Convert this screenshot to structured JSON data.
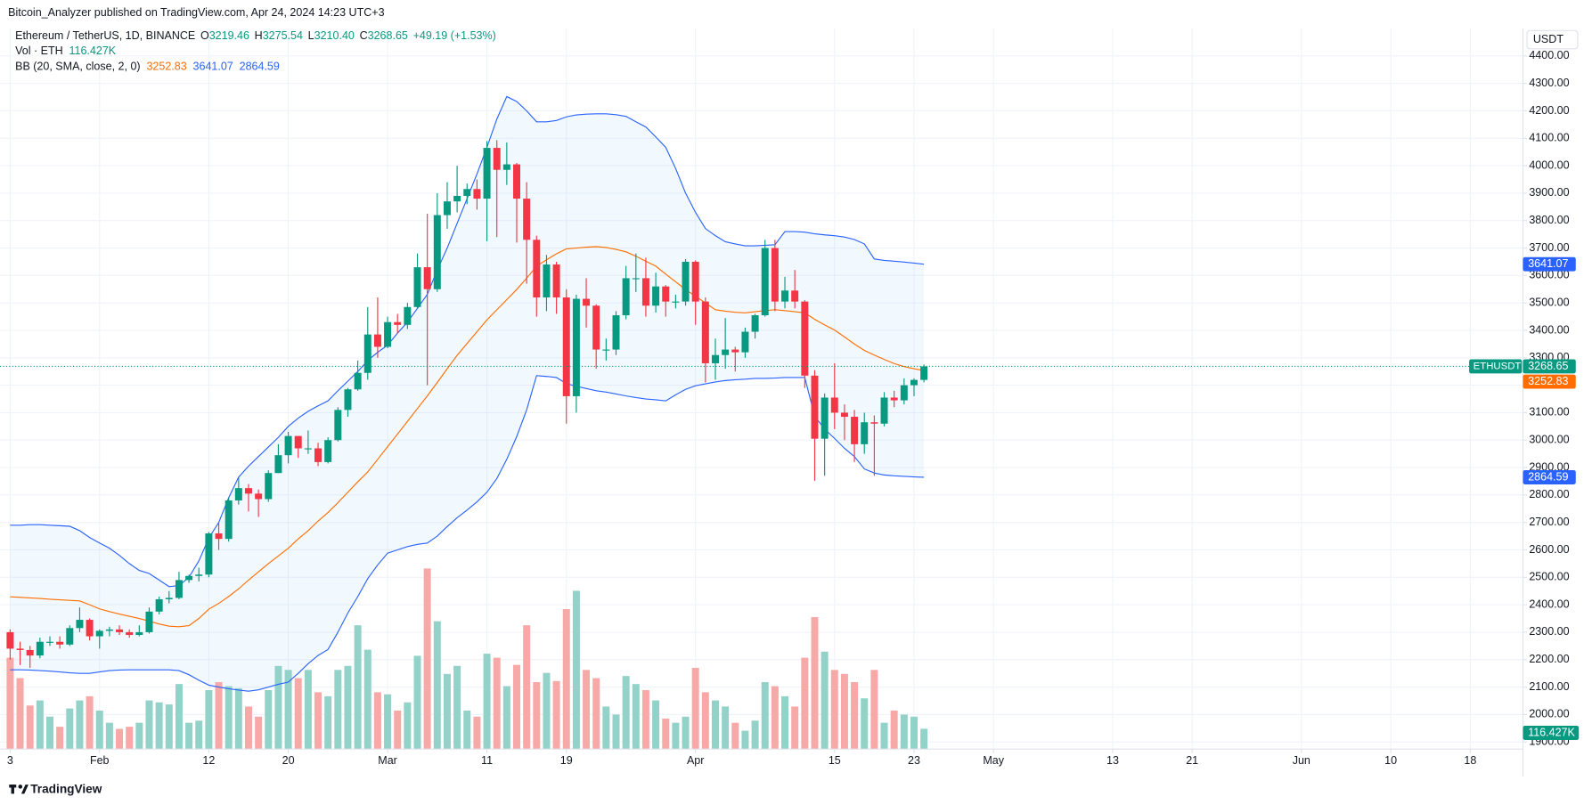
{
  "chart_data": {
    "type": "candlestick",
    "publisher": "Bitcoin_Analyzer published on TradingView.com, Apr 24, 2024 14:23 UTC+3",
    "symbol": "Ethereum / TetherUS, 1D, BINANCE",
    "ohlc_labels": {
      "open": "O",
      "high": "H",
      "low": "L",
      "close": "C"
    },
    "change": "+49.19 (+1.53%)",
    "price_label": "ETHUSDT",
    "currency": "USDT",
    "brand": "TradingView",
    "up_color": "#089981",
    "down_color": "#f23645",
    "x": [
      "01-23",
      "01-24",
      "01-25",
      "01-26",
      "01-27",
      "01-28",
      "01-29",
      "01-30",
      "01-31",
      "02-01",
      "02-02",
      "02-03",
      "02-04",
      "02-05",
      "02-06",
      "02-07",
      "02-08",
      "02-09",
      "02-10",
      "02-11",
      "02-12",
      "02-13",
      "02-14",
      "02-15",
      "02-16",
      "02-17",
      "02-18",
      "02-19",
      "02-20",
      "02-21",
      "02-22",
      "02-23",
      "02-24",
      "02-25",
      "02-26",
      "02-27",
      "02-28",
      "02-29",
      "03-01",
      "03-02",
      "03-03",
      "03-04",
      "03-05",
      "03-06",
      "03-07",
      "03-08",
      "03-09",
      "03-10",
      "03-11",
      "03-12",
      "03-13",
      "03-14",
      "03-15",
      "03-16",
      "03-17",
      "03-18",
      "03-19",
      "03-20",
      "03-21",
      "03-22",
      "03-23",
      "03-24",
      "03-25",
      "03-26",
      "03-27",
      "03-28",
      "03-29",
      "03-30",
      "03-31",
      "04-01",
      "04-02",
      "04-03",
      "04-04",
      "04-05",
      "04-06",
      "04-07",
      "04-08",
      "04-09",
      "04-10",
      "04-11",
      "04-12",
      "04-13",
      "04-14",
      "04-15",
      "04-16",
      "04-17",
      "04-18",
      "04-19",
      "04-20",
      "04-21",
      "04-22",
      "04-23",
      "04-24"
    ],
    "open": [
      2300,
      2240,
      2235,
      2215,
      2265,
      2265,
      2255,
      2315,
      2345,
      2285,
      2305,
      2310,
      2300,
      2290,
      2300,
      2375,
      2420,
      2425,
      2490,
      2505,
      2510,
      2660,
      2640,
      2780,
      2825,
      2805,
      2785,
      2880,
      2945,
      3015,
      2970,
      2970,
      2920,
      3000,
      3110,
      3185,
      3245,
      3385,
      3340,
      3430,
      3420,
      3485,
      3630,
      3550,
      3820,
      3870,
      3890,
      3915,
      3880,
      4065,
      3985,
      4005,
      3880,
      3730,
      3520,
      3640,
      3520,
      3160,
      3515,
      3490,
      3330,
      3330,
      3455,
      3590,
      3590,
      3490,
      3560,
      3505,
      3505,
      3650,
      3505,
      3280,
      3310,
      3330,
      3320,
      3395,
      3455,
      3700,
      3505,
      3545,
      3505,
      3235,
      3005,
      3155,
      3100,
      3085,
      2985,
      3065,
      3060,
      3155,
      3145,
      3200,
      3219.46
    ],
    "high": [
      2310,
      2265,
      2250,
      2280,
      2285,
      2285,
      2325,
      2390,
      2350,
      2310,
      2320,
      2325,
      2310,
      2325,
      2390,
      2430,
      2450,
      2520,
      2510,
      2535,
      2665,
      2700,
      2790,
      2865,
      2840,
      2820,
      2890,
      2985,
      3030,
      3015,
      3035,
      2990,
      3010,
      3120,
      3190,
      3290,
      3485,
      3520,
      3450,
      3460,
      3500,
      3680,
      3825,
      3900,
      3940,
      4000,
      3935,
      3950,
      4090,
      4093,
      4085,
      4010,
      3940,
      3745,
      3675,
      3650,
      3550,
      3530,
      3590,
      3495,
      3370,
      3470,
      3635,
      3680,
      3665,
      3610,
      3565,
      3530,
      3660,
      3655,
      3520,
      3370,
      3445,
      3340,
      3410,
      3460,
      3730,
      3730,
      3595,
      3620,
      3510,
      3255,
      3170,
      3280,
      3130,
      3110,
      3100,
      3090,
      3175,
      3180,
      3225,
      3225,
      3275.54
    ],
    "low": [
      2200,
      2180,
      2170,
      2205,
      2250,
      2240,
      2250,
      2300,
      2270,
      2240,
      2285,
      2290,
      2280,
      2285,
      2295,
      2365,
      2405,
      2420,
      2480,
      2485,
      2500,
      2600,
      2630,
      2765,
      2740,
      2720,
      2775,
      2880,
      2915,
      2935,
      2950,
      2905,
      2915,
      2995,
      3085,
      3180,
      3220,
      3300,
      3335,
      3390,
      3405,
      3480,
      3200,
      3540,
      3770,
      3830,
      3860,
      3840,
      3725,
      3740,
      3930,
      3720,
      3570,
      3450,
      3470,
      3460,
      3060,
      3100,
      3410,
      3260,
      3290,
      3310,
      3440,
      3540,
      3450,
      3465,
      3450,
      3480,
      3490,
      3420,
      3210,
      3220,
      3260,
      3250,
      3300,
      3370,
      3450,
      3470,
      3480,
      3480,
      3190,
      2852,
      2870,
      3040,
      3000,
      2920,
      2950,
      2870,
      3050,
      3120,
      3130,
      3160,
      3210.4
    ],
    "close": [
      2240,
      2235,
      2215,
      2265,
      2265,
      2255,
      2315,
      2345,
      2285,
      2305,
      2310,
      2300,
      2290,
      2300,
      2375,
      2420,
      2425,
      2490,
      2505,
      2510,
      2660,
      2640,
      2780,
      2825,
      2805,
      2785,
      2880,
      2945,
      3015,
      2970,
      2970,
      2920,
      3000,
      3110,
      3185,
      3245,
      3385,
      3340,
      3430,
      3420,
      3485,
      3630,
      3550,
      3820,
      3870,
      3890,
      3915,
      3880,
      4065,
      3985,
      4005,
      3880,
      3730,
      3520,
      3640,
      3520,
      3160,
      3515,
      3490,
      3330,
      3330,
      3455,
      3590,
      3590,
      3490,
      3560,
      3505,
      3505,
      3650,
      3505,
      3280,
      3310,
      3330,
      3320,
      3395,
      3455,
      3700,
      3505,
      3545,
      3505,
      3235,
      3005,
      3155,
      3100,
      3085,
      2985,
      3065,
      3060,
      3155,
      3145,
      3200,
      3219.46,
      3268.65
    ],
    "volume": {
      "name": "Vol · ETH",
      "up_color": "#92d2c8",
      "down_color": "#f7a9a7",
      "last_label": "116.427K",
      "ylim": [
        0,
        4133
      ],
      "values": [
        524,
        407,
        250,
        279,
        186,
        128,
        233,
        279,
        303,
        221,
        151,
        116,
        128,
        151,
        279,
        268,
        256,
        373,
        151,
        163,
        338,
        384,
        361,
        349,
        244,
        186,
        338,
        477,
        454,
        407,
        454,
        326,
        303,
        454,
        477,
        710,
        570,
        326,
        314,
        221,
        268,
        535,
        1036,
        733,
        431,
        477,
        221,
        186,
        547,
        524,
        361,
        483,
        710,
        384,
        437,
        390,
        803,
        908,
        454,
        407,
        244,
        198,
        419,
        373,
        338,
        279,
        175,
        151,
        186,
        466,
        326,
        279,
        244,
        151,
        105,
        163,
        384,
        361,
        303,
        244,
        524,
        757,
        559,
        454,
        431,
        384,
        291,
        454,
        151,
        221,
        198,
        186,
        116.427
      ]
    },
    "bollinger": {
      "name": "BB (20, SMA, close, 2, 0)",
      "fill": "#2196f3",
      "upper": {
        "color": "#2962ff",
        "values": [
          2690,
          2690,
          2692,
          2692,
          2690,
          2688,
          2686,
          2670,
          2645,
          2625,
          2606,
          2580,
          2550,
          2525,
          2514,
          2490,
          2466,
          2470,
          2500,
          2560,
          2643,
          2700,
          2790,
          2865,
          2905,
          2940,
          2975,
          3010,
          3050,
          3080,
          3105,
          3125,
          3143,
          3180,
          3215,
          3250,
          3290,
          3320,
          3346,
          3390,
          3430,
          3480,
          3531,
          3620,
          3700,
          3790,
          3880,
          3970,
          4067,
          4170,
          4252,
          4234,
          4200,
          4160,
          4160,
          4165,
          4178,
          4185,
          4188,
          4189,
          4189,
          4186,
          4180,
          4160,
          4141,
          4105,
          4067,
          3990,
          3900,
          3830,
          3771,
          3745,
          3723,
          3715,
          3708,
          3708,
          3710,
          3712,
          3760,
          3760,
          3758,
          3752,
          3748,
          3745,
          3740,
          3731,
          3715,
          3660,
          3655,
          3652,
          3649,
          3645,
          3641.07
        ]
      },
      "middle": {
        "color": "#ff6d00",
        "values": [
          2429,
          2427,
          2425,
          2423,
          2420,
          2418,
          2416,
          2414,
          2400,
          2385,
          2375,
          2366,
          2358,
          2350,
          2340,
          2330,
          2322,
          2320,
          2324,
          2350,
          2384,
          2405,
          2430,
          2458,
          2490,
          2520,
          2550,
          2578,
          2606,
          2640,
          2670,
          2705,
          2736,
          2772,
          2810,
          2848,
          2884,
          2930,
          2976,
          3022,
          3068,
          3115,
          3161,
          3210,
          3260,
          3309,
          3352,
          3395,
          3438,
          3475,
          3512,
          3549,
          3590,
          3634,
          3657,
          3679,
          3697,
          3700,
          3703,
          3705,
          3702,
          3695,
          3686,
          3670,
          3652,
          3634,
          3605,
          3577,
          3549,
          3524,
          3500,
          3475,
          3470,
          3466,
          3464,
          3468,
          3472,
          3475,
          3472,
          3468,
          3464,
          3440,
          3420,
          3401,
          3376,
          3350,
          3327,
          3310,
          3294,
          3279,
          3268,
          3260,
          3252.83
        ]
      },
      "lower": {
        "color": "#2962ff",
        "values": [
          2163,
          2163,
          2162,
          2160,
          2158,
          2155,
          2152,
          2150,
          2150,
          2155,
          2160,
          2162,
          2163,
          2163,
          2163,
          2163,
          2163,
          2160,
          2145,
          2125,
          2107,
          2100,
          2094,
          2089,
          2085,
          2090,
          2100,
          2110,
          2118,
          2150,
          2185,
          2215,
          2237,
          2300,
          2370,
          2430,
          2495,
          2545,
          2588,
          2600,
          2612,
          2620,
          2625,
          2650,
          2685,
          2717,
          2745,
          2775,
          2810,
          2860,
          2930,
          3013,
          3110,
          3235,
          3232,
          3228,
          3206,
          3196,
          3188,
          3180,
          3175,
          3168,
          3161,
          3155,
          3150,
          3147,
          3143,
          3165,
          3185,
          3198,
          3205,
          3212,
          3217,
          3220,
          3222,
          3225,
          3225,
          3226,
          3228,
          3228,
          3228,
          3087,
          3040,
          3006,
          2970,
          2940,
          2895,
          2880,
          2873,
          2870,
          2868,
          2866,
          2864.59
        ]
      }
    },
    "xlim": [
      "01-23",
      "06-23"
    ],
    "xticks": [
      {
        "value": "01-23",
        "label": "3"
      },
      {
        "value": "02-01",
        "label": "Feb"
      },
      {
        "value": "02-12",
        "label": "12"
      },
      {
        "value": "02-20",
        "label": "20"
      },
      {
        "value": "03-01",
        "label": "Mar"
      },
      {
        "value": "03-11",
        "label": "11"
      },
      {
        "value": "03-19",
        "label": "19"
      },
      {
        "value": "04-01",
        "label": "Apr"
      },
      {
        "value": "04-15",
        "label": "15"
      },
      {
        "value": "04-23",
        "label": "23"
      },
      {
        "value": "05-01",
        "label": "May"
      },
      {
        "value": "05-13",
        "label": "13"
      },
      {
        "value": "05-21",
        "label": "21"
      },
      {
        "value": "06-01",
        "label": "Jun"
      },
      {
        "value": "06-10",
        "label": "10"
      },
      {
        "value": "06-18",
        "label": "18"
      }
    ],
    "ylim": [
      1874,
      4500
    ],
    "yticks": [
      {
        "value": 1900,
        "label": "1900.00"
      },
      {
        "value": 2000,
        "label": "2000.00"
      },
      {
        "value": 2100,
        "label": "2100.00"
      },
      {
        "value": 2200,
        "label": "2200.00"
      },
      {
        "value": 2300,
        "label": "2300.00"
      },
      {
        "value": 2400,
        "label": "2400.00"
      },
      {
        "value": 2500,
        "label": "2500.00"
      },
      {
        "value": 2600,
        "label": "2600.00"
      },
      {
        "value": 2700,
        "label": "2700.00"
      },
      {
        "value": 2800,
        "label": "2800.00"
      },
      {
        "value": 2900,
        "label": "2900.00"
      },
      {
        "value": 3000,
        "label": "3000.00"
      },
      {
        "value": 3100,
        "label": "3100.00"
      },
      {
        "value": 3200,
        "label": "3200.00"
      },
      {
        "value": 3300,
        "label": "3300.00"
      },
      {
        "value": 3400,
        "label": "3400.00"
      },
      {
        "value": 3500,
        "label": "3500.00"
      },
      {
        "value": 3600,
        "label": "3600.00"
      },
      {
        "value": 3700,
        "label": "3700.00"
      },
      {
        "value": 3800,
        "label": "3800.00"
      },
      {
        "value": 3900,
        "label": "3900.00"
      },
      {
        "value": 4000,
        "label": "4000.00"
      },
      {
        "value": 4100,
        "label": "4100.00"
      },
      {
        "value": 4200,
        "label": "4200.00"
      },
      {
        "value": 4300,
        "label": "4300.00"
      },
      {
        "value": 4400,
        "label": "4400.00"
      }
    ],
    "grid": true
  }
}
